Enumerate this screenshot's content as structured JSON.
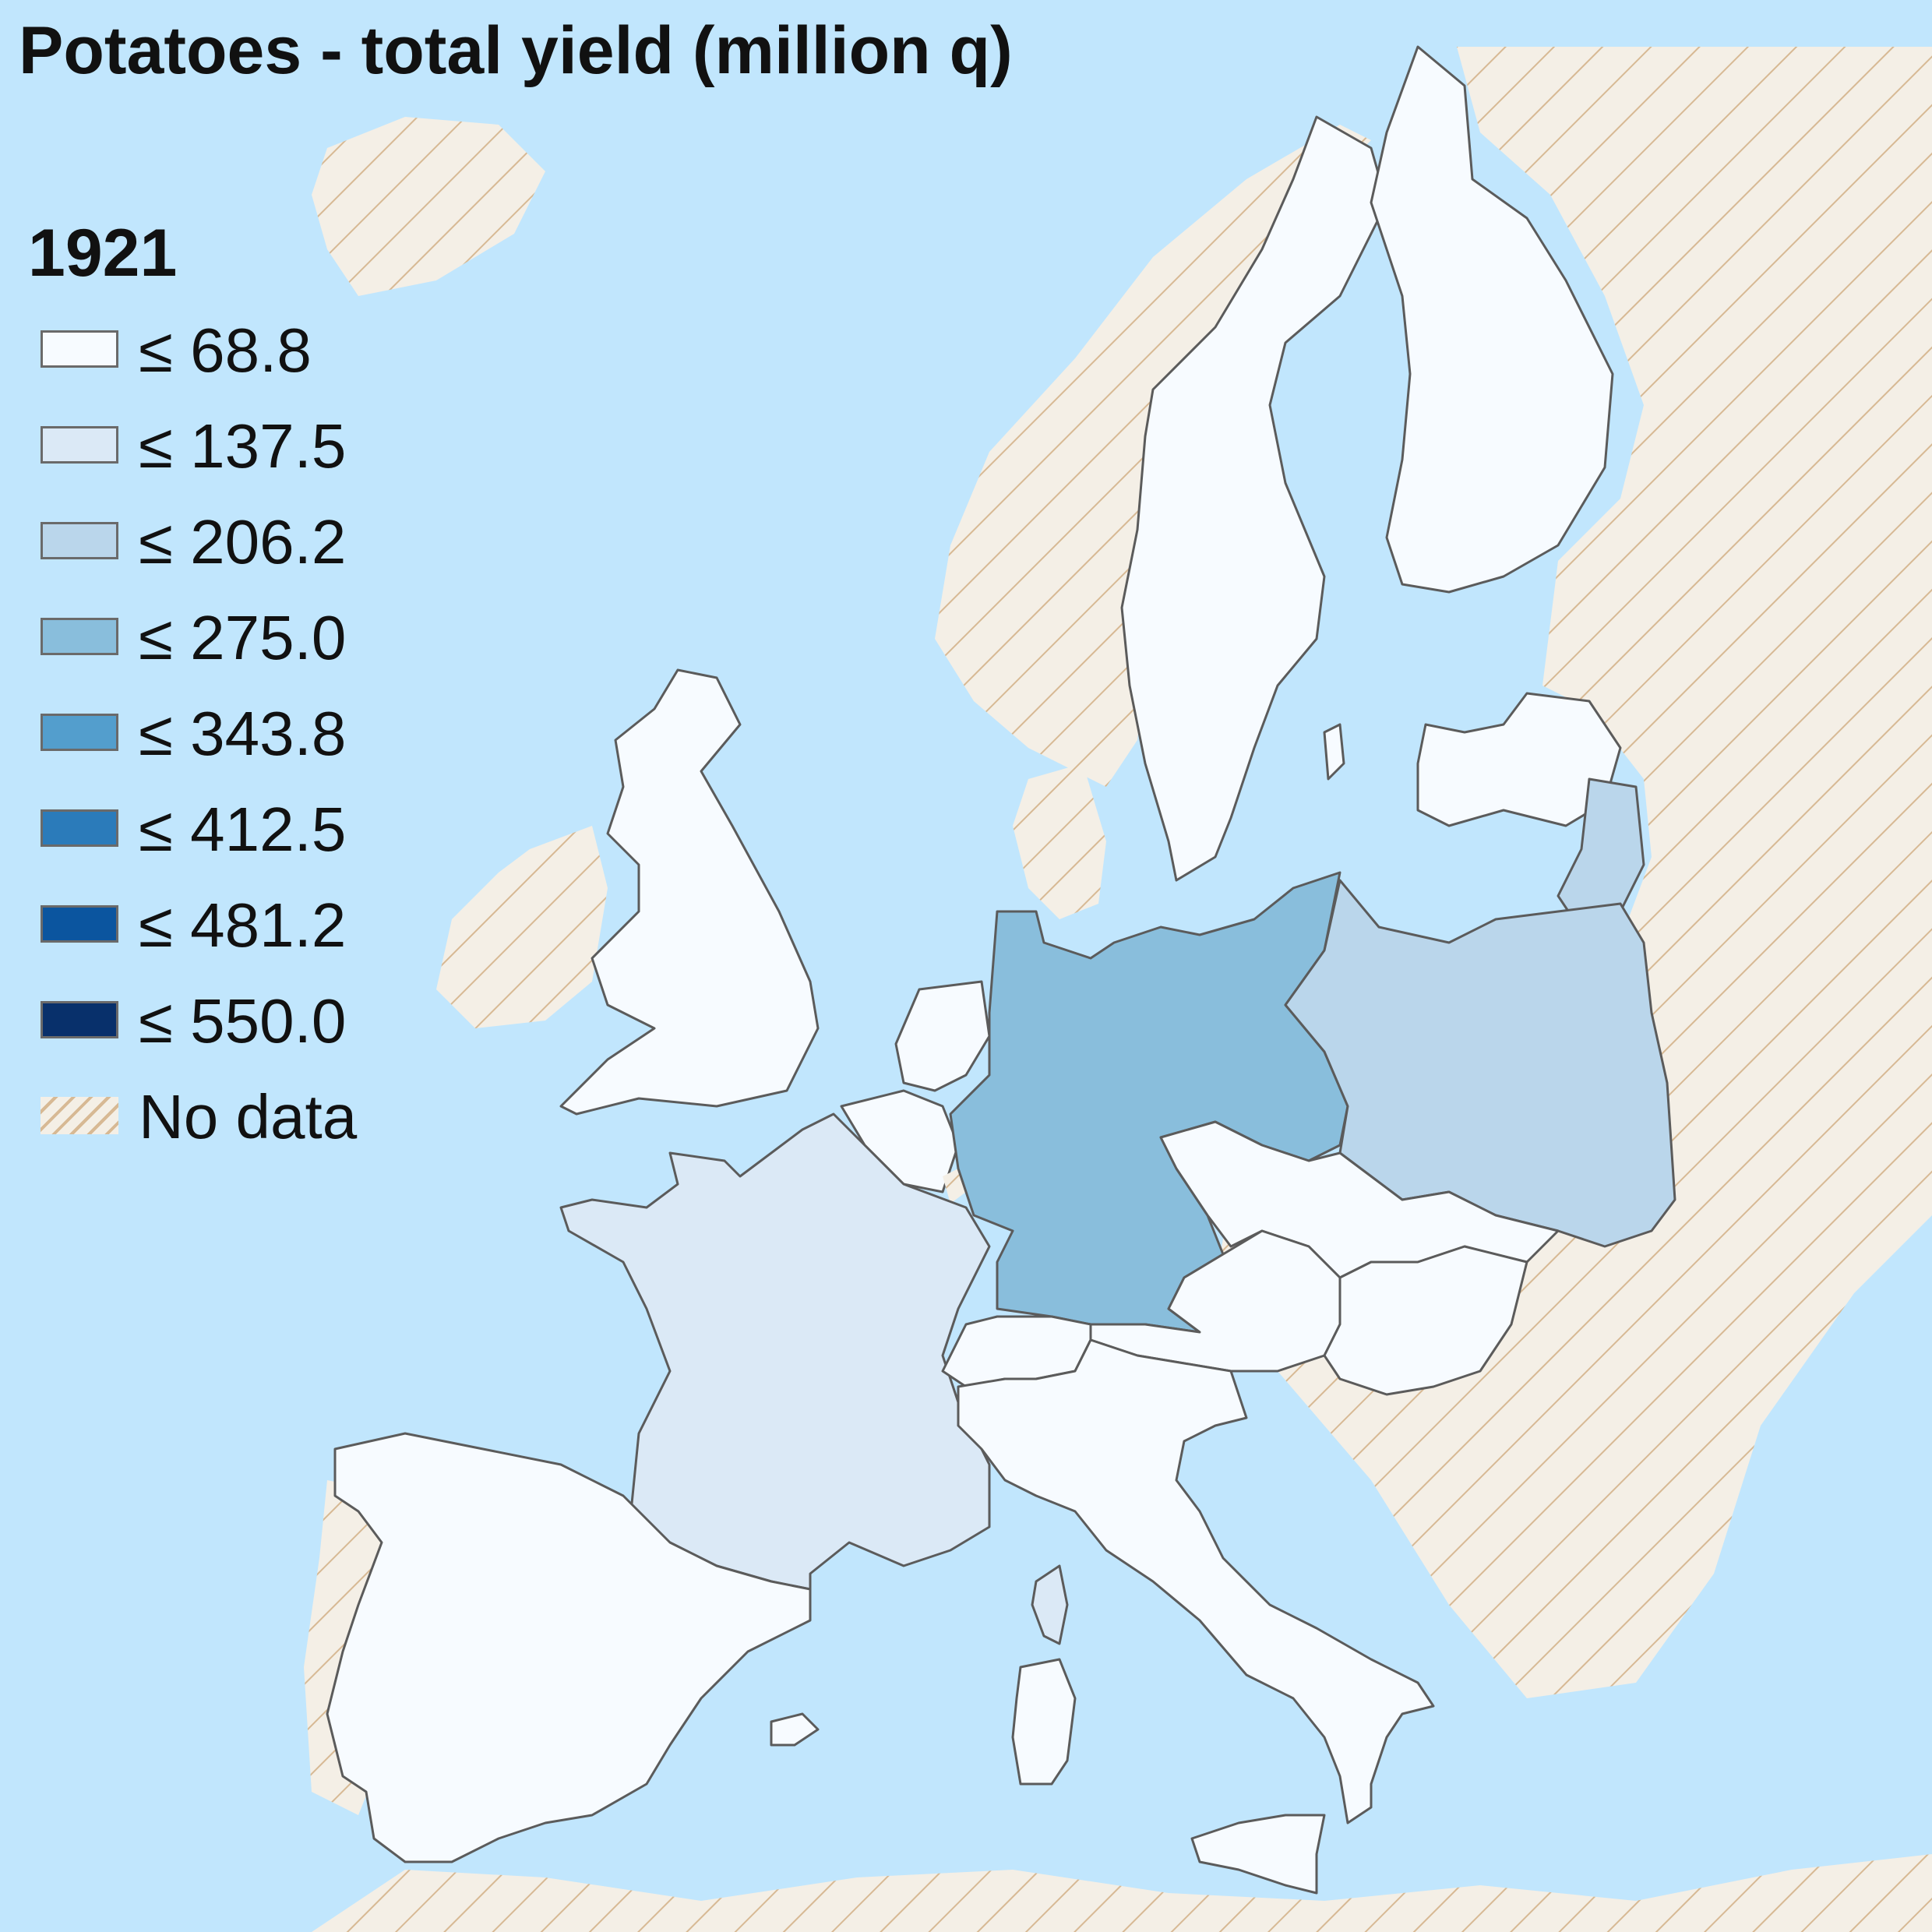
{
  "title": "Potatoes - total yield (million q)",
  "year": "1921",
  "colors": {
    "sea": "#c1e6fd",
    "land_nodata": "#f4efe6",
    "hatch": "#d7b994",
    "border": "#5b5b5b"
  },
  "legend": [
    {
      "label": "≤ 68.8",
      "color": "#f7fbff"
    },
    {
      "label": "≤ 137.5",
      "color": "#dbe9f6"
    },
    {
      "label": "≤ 206.2",
      "color": "#bad6eb"
    },
    {
      "label": "≤ 275.0",
      "color": "#89bedc"
    },
    {
      "label": "≤ 343.8",
      "color": "#539ecd"
    },
    {
      "label": "≤ 412.5",
      "color": "#2b7bba"
    },
    {
      "label": "≤ 481.2",
      "color": "#0b559f"
    },
    {
      "label": "≤ 550.0",
      "color": "#08306b"
    },
    {
      "label": "No data",
      "color": "hatch"
    }
  ],
  "regions": [
    {
      "name": "Sweden",
      "class": "≤ 68.8"
    },
    {
      "name": "Finland",
      "class": "≤ 68.8"
    },
    {
      "name": "Latvia",
      "class": "≤ 68.8"
    },
    {
      "name": "Lithuania",
      "class": "≤ 206.2"
    },
    {
      "name": "United Kingdom",
      "class": "≤ 68.8"
    },
    {
      "name": "Netherlands",
      "class": "≤ 68.8"
    },
    {
      "name": "Belgium",
      "class": "≤ 68.8"
    },
    {
      "name": "Luxembourg",
      "class": "No data"
    },
    {
      "name": "France",
      "class": "≤ 137.5"
    },
    {
      "name": "Germany",
      "class": "≤ 275.0"
    },
    {
      "name": "Poland",
      "class": "≤ 206.2"
    },
    {
      "name": "Czechoslovakia",
      "class": "≤ 68.8"
    },
    {
      "name": "Austria",
      "class": "≤ 68.8"
    },
    {
      "name": "Hungary",
      "class": "≤ 68.8"
    },
    {
      "name": "Switzerland",
      "class": "≤ 68.8"
    },
    {
      "name": "Italy",
      "class": "≤ 68.8"
    },
    {
      "name": "Spain",
      "class": "≤ 68.8"
    },
    {
      "name": "Corsica",
      "class": "≤ 137.5"
    },
    {
      "name": "Sardinia",
      "class": "≤ 68.8"
    },
    {
      "name": "Sicily",
      "class": "≤ 68.8"
    }
  ]
}
